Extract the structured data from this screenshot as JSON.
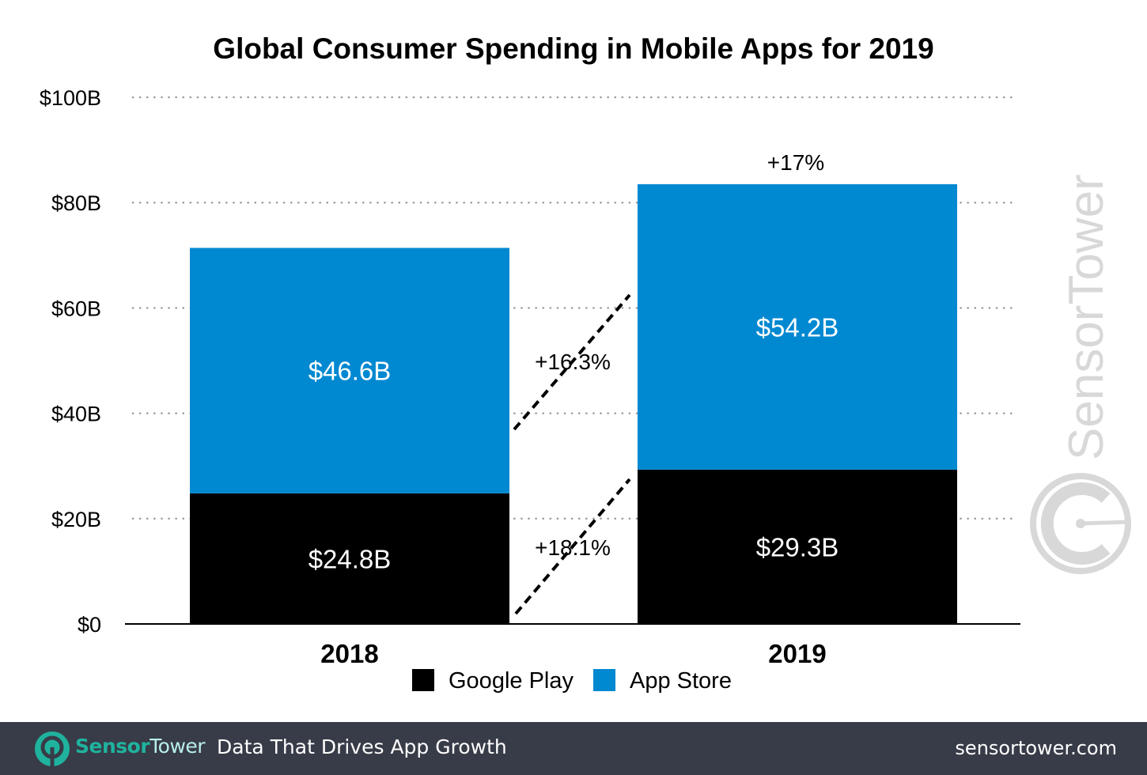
{
  "chart_data": {
    "type": "bar",
    "stacked": true,
    "title": "Global Consumer Spending in Mobile Apps for 2019",
    "categories": [
      "2018",
      "2019"
    ],
    "series": [
      {
        "name": "Google Play",
        "values": [
          24.8,
          29.3
        ],
        "labels": [
          "$24.8B",
          "$29.3B"
        ],
        "color": "#000000"
      },
      {
        "name": "App Store",
        "values": [
          46.6,
          54.2
        ],
        "labels": [
          "$46.6B",
          "$54.2B"
        ],
        "color": "#0088d1"
      }
    ],
    "ylim": [
      0,
      100
    ],
    "yticks": [
      0,
      20,
      40,
      60,
      80,
      100
    ],
    "ytick_labels": [
      "$0",
      "$20B",
      "$40B",
      "$60B",
      "$80B",
      "$100B"
    ],
    "grid": true,
    "legend_placement": "bottom",
    "annotations": {
      "total_growth": "+17%",
      "app_store_growth": "+16.3%",
      "google_play_growth": "+18.1%"
    }
  },
  "watermark": "SensorTower",
  "footer": {
    "brand_a": "Sensor",
    "brand_b": "Tower",
    "tagline": "Data That Drives App Growth",
    "url": "sensortower.com"
  }
}
